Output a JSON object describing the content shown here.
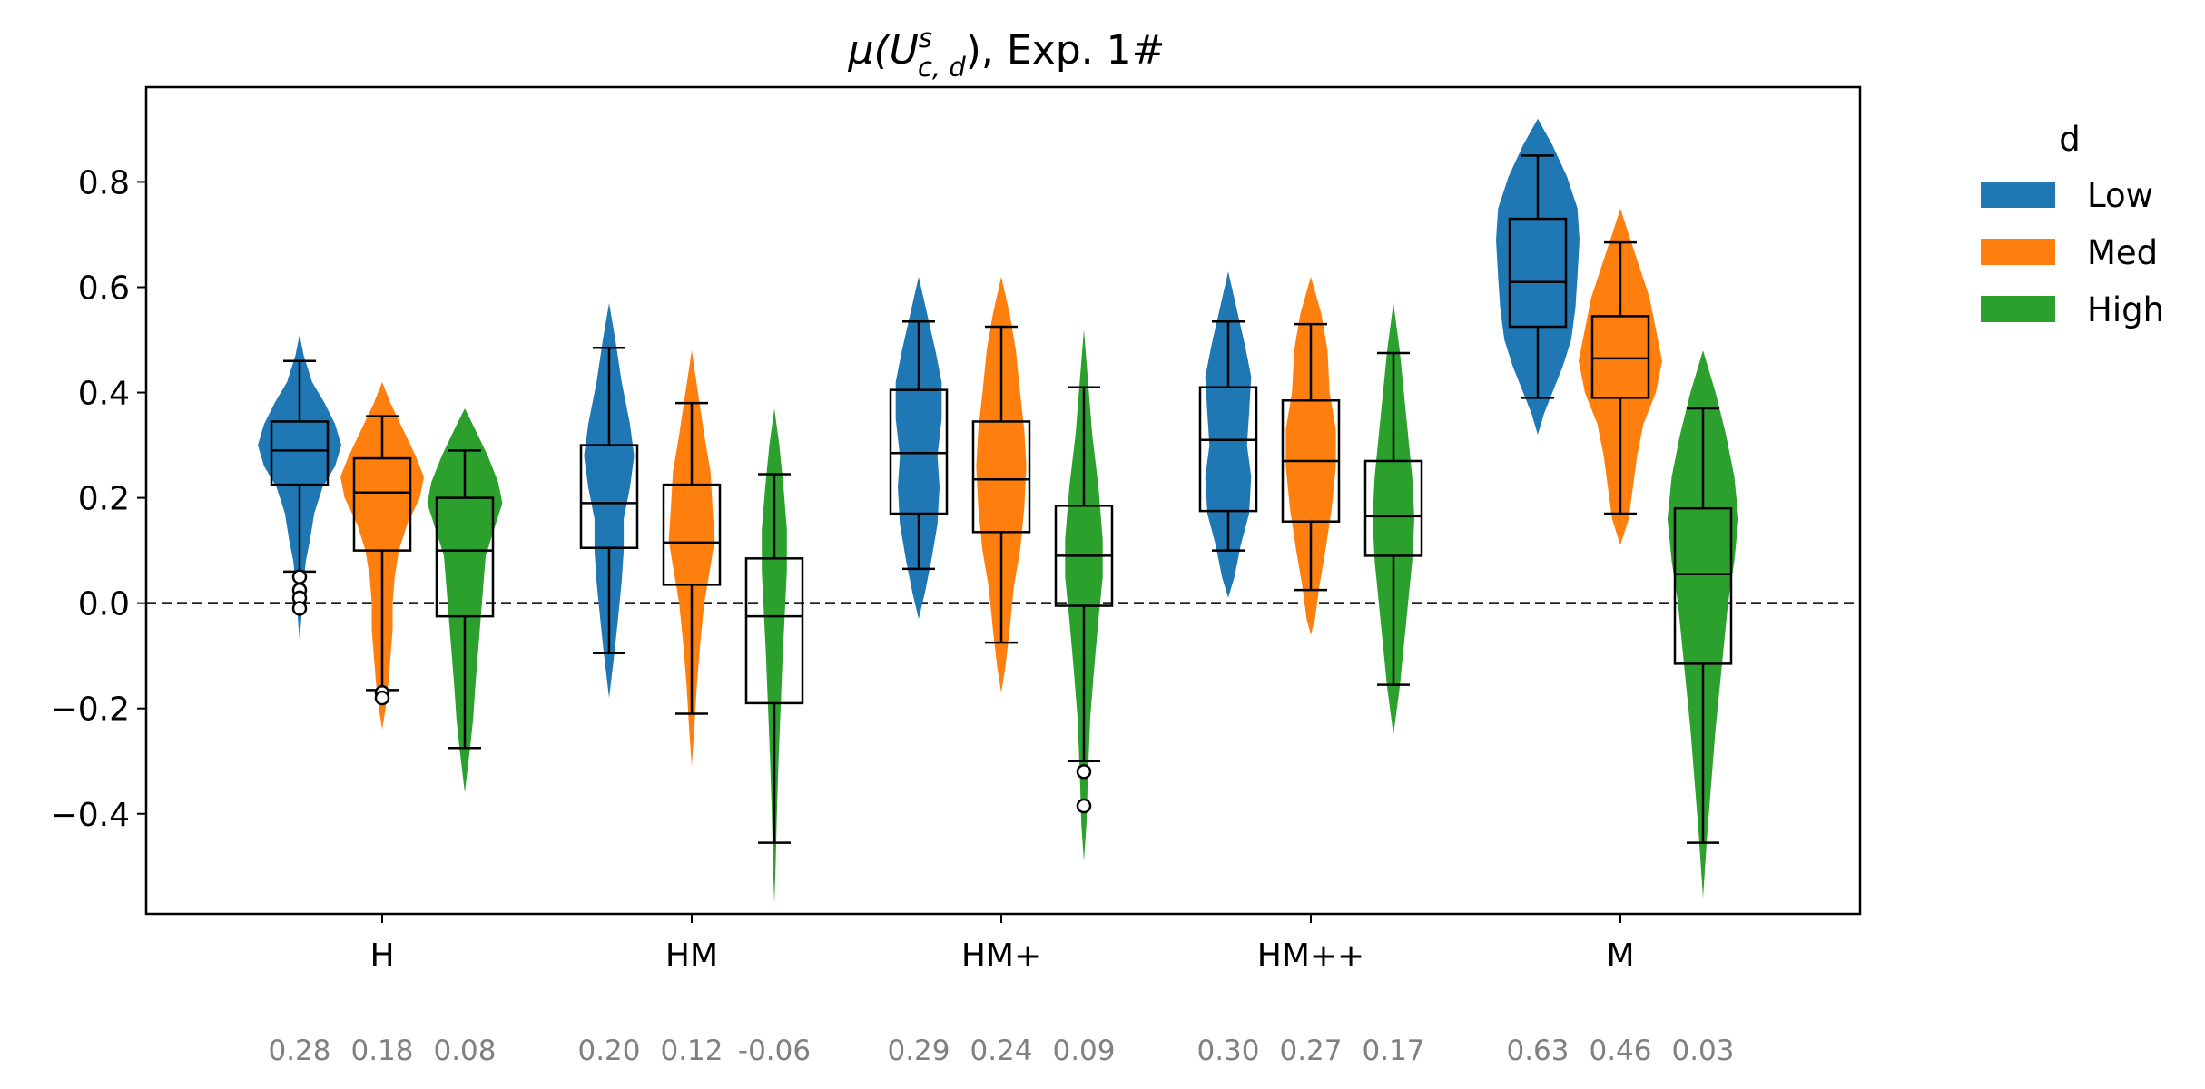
{
  "chart_data": {
    "type": "violin",
    "title": "μ(U",
    "title_sup": "s",
    "title_sub": "c, d",
    "title_suffix": "), Exp. 1#",
    "xlabel": "",
    "ylabel": "",
    "ylim": [
      -0.59,
      0.98
    ],
    "yticks": [
      0.8,
      0.6,
      0.4,
      0.2,
      0.0,
      -0.2,
      -0.4
    ],
    "ytick_labels": [
      "0.8",
      "0.6",
      "0.4",
      "0.2",
      "0.0",
      "−0.2",
      "−0.4"
    ],
    "reference_line": {
      "y": 0.0,
      "style": "dashed"
    },
    "categories": [
      "H",
      "HM",
      "HM+",
      "HM++",
      "M"
    ],
    "legend": {
      "title": "d",
      "placement": "outside-top-right",
      "items": [
        {
          "label": "Low",
          "color": "#1f77b4"
        },
        {
          "label": "Med",
          "color": "#ff7f0e"
        },
        {
          "label": "High",
          "color": "#2ca02c"
        }
      ]
    },
    "series": [
      {
        "name": "Low",
        "color": "#1f77b4",
        "means": [
          "0.28",
          "0.20",
          "0.29",
          "0.30",
          "0.63"
        ],
        "violins": [
          [
            [
              0.51,
              0.0
            ],
            [
              0.47,
              0.1
            ],
            [
              0.42,
              0.3
            ],
            [
              0.38,
              0.6
            ],
            [
              0.34,
              0.85
            ],
            [
              0.3,
              1.0
            ],
            [
              0.26,
              0.85
            ],
            [
              0.22,
              0.55
            ],
            [
              0.17,
              0.35
            ],
            [
              0.12,
              0.25
            ],
            [
              0.08,
              0.15
            ],
            [
              0.04,
              0.1
            ],
            [
              0.0,
              0.07
            ],
            [
              -0.04,
              0.03
            ],
            [
              -0.07,
              0.0
            ]
          ],
          [
            [
              0.57,
              0.0
            ],
            [
              0.5,
              0.15
            ],
            [
              0.42,
              0.3
            ],
            [
              0.34,
              0.5
            ],
            [
              0.28,
              0.6
            ],
            [
              0.22,
              0.5
            ],
            [
              0.16,
              0.35
            ],
            [
              0.1,
              0.35
            ],
            [
              0.04,
              0.3
            ],
            [
              -0.04,
              0.2
            ],
            [
              -0.1,
              0.12
            ],
            [
              -0.18,
              0.0
            ]
          ],
          [
            [
              0.62,
              0.0
            ],
            [
              0.55,
              0.2
            ],
            [
              0.48,
              0.4
            ],
            [
              0.42,
              0.55
            ],
            [
              0.35,
              0.55
            ],
            [
              0.28,
              0.45
            ],
            [
              0.22,
              0.5
            ],
            [
              0.15,
              0.45
            ],
            [
              0.08,
              0.3
            ],
            [
              0.02,
              0.15
            ],
            [
              -0.03,
              0.0
            ]
          ],
          [
            [
              0.63,
              0.0
            ],
            [
              0.56,
              0.2
            ],
            [
              0.49,
              0.4
            ],
            [
              0.43,
              0.55
            ],
            [
              0.36,
              0.5
            ],
            [
              0.3,
              0.45
            ],
            [
              0.24,
              0.55
            ],
            [
              0.17,
              0.5
            ],
            [
              0.11,
              0.3
            ],
            [
              0.05,
              0.15
            ],
            [
              0.01,
              0.0
            ]
          ],
          [
            [
              0.92,
              0.0
            ],
            [
              0.87,
              0.35
            ],
            [
              0.81,
              0.7
            ],
            [
              0.75,
              0.95
            ],
            [
              0.69,
              1.0
            ],
            [
              0.62,
              0.95
            ],
            [
              0.56,
              0.9
            ],
            [
              0.5,
              0.8
            ],
            [
              0.45,
              0.6
            ],
            [
              0.4,
              0.35
            ],
            [
              0.36,
              0.15
            ],
            [
              0.32,
              0.0
            ]
          ]
        ],
        "boxes": [
          {
            "whislo": 0.06,
            "q1": 0.225,
            "med": 0.29,
            "q3": 0.345,
            "whishi": 0.46,
            "fliers": [
              0.05,
              0.025,
              0.01,
              -0.01
            ]
          },
          {
            "whislo": -0.095,
            "q1": 0.105,
            "med": 0.19,
            "q3": 0.3,
            "whishi": 0.485,
            "fliers": []
          },
          {
            "whislo": 0.065,
            "q1": 0.17,
            "med": 0.285,
            "q3": 0.405,
            "whishi": 0.535,
            "fliers": []
          },
          {
            "whislo": 0.1,
            "q1": 0.175,
            "med": 0.31,
            "q3": 0.41,
            "whishi": 0.535,
            "fliers": []
          },
          {
            "whislo": 0.39,
            "q1": 0.525,
            "med": 0.61,
            "q3": 0.73,
            "whishi": 0.85,
            "fliers": []
          }
        ]
      },
      {
        "name": "Med",
        "color": "#ff7f0e",
        "means": [
          "0.18",
          "0.12",
          "0.24",
          "0.27",
          "0.46"
        ],
        "violins": [
          [
            [
              0.42,
              0.0
            ],
            [
              0.38,
              0.2
            ],
            [
              0.33,
              0.5
            ],
            [
              0.28,
              0.8
            ],
            [
              0.24,
              1.0
            ],
            [
              0.2,
              0.9
            ],
            [
              0.15,
              0.6
            ],
            [
              0.1,
              0.4
            ],
            [
              0.05,
              0.3
            ],
            [
              0.0,
              0.25
            ],
            [
              -0.05,
              0.25
            ],
            [
              -0.1,
              0.2
            ],
            [
              -0.15,
              0.15
            ],
            [
              -0.2,
              0.08
            ],
            [
              -0.24,
              0.0
            ]
          ],
          [
            [
              0.48,
              0.0
            ],
            [
              0.4,
              0.15
            ],
            [
              0.32,
              0.3
            ],
            [
              0.25,
              0.45
            ],
            [
              0.18,
              0.5
            ],
            [
              0.12,
              0.55
            ],
            [
              0.07,
              0.45
            ],
            [
              0.0,
              0.3
            ],
            [
              -0.08,
              0.2
            ],
            [
              -0.16,
              0.12
            ],
            [
              -0.24,
              0.06
            ],
            [
              -0.31,
              0.0
            ]
          ],
          [
            [
              0.62,
              0.0
            ],
            [
              0.55,
              0.2
            ],
            [
              0.48,
              0.35
            ],
            [
              0.4,
              0.45
            ],
            [
              0.33,
              0.55
            ],
            [
              0.26,
              0.6
            ],
            [
              0.18,
              0.55
            ],
            [
              0.1,
              0.45
            ],
            [
              0.03,
              0.3
            ],
            [
              -0.05,
              0.2
            ],
            [
              -0.12,
              0.1
            ],
            [
              -0.17,
              0.0
            ]
          ],
          [
            [
              0.62,
              0.0
            ],
            [
              0.55,
              0.25
            ],
            [
              0.48,
              0.4
            ],
            [
              0.4,
              0.45
            ],
            [
              0.33,
              0.6
            ],
            [
              0.26,
              0.6
            ],
            [
              0.18,
              0.5
            ],
            [
              0.1,
              0.35
            ],
            [
              0.03,
              0.2
            ],
            [
              -0.03,
              0.1
            ],
            [
              -0.06,
              0.0
            ]
          ],
          [
            [
              0.75,
              0.0
            ],
            [
              0.7,
              0.2
            ],
            [
              0.64,
              0.45
            ],
            [
              0.58,
              0.7
            ],
            [
              0.52,
              0.85
            ],
            [
              0.46,
              1.0
            ],
            [
              0.4,
              0.85
            ],
            [
              0.34,
              0.55
            ],
            [
              0.28,
              0.4
            ],
            [
              0.22,
              0.3
            ],
            [
              0.16,
              0.2
            ],
            [
              0.11,
              0.0
            ]
          ]
        ],
        "boxes": [
          {
            "whislo": -0.165,
            "q1": 0.1,
            "med": 0.21,
            "q3": 0.275,
            "whishi": 0.355,
            "fliers": [
              -0.17,
              -0.18
            ]
          },
          {
            "whislo": -0.21,
            "q1": 0.035,
            "med": 0.115,
            "q3": 0.225,
            "whishi": 0.38,
            "fliers": []
          },
          {
            "whislo": -0.075,
            "q1": 0.135,
            "med": 0.235,
            "q3": 0.345,
            "whishi": 0.525,
            "fliers": []
          },
          {
            "whislo": 0.025,
            "q1": 0.155,
            "med": 0.27,
            "q3": 0.385,
            "whishi": 0.53,
            "fliers": []
          },
          {
            "whislo": 0.17,
            "q1": 0.39,
            "med": 0.465,
            "q3": 0.545,
            "whishi": 0.685,
            "fliers": []
          }
        ]
      },
      {
        "name": "High",
        "color": "#2ca02c",
        "means": [
          "0.08",
          "-0.06",
          "0.09",
          "0.17",
          "0.03"
        ],
        "violins": [
          [
            [
              0.37,
              0.0
            ],
            [
              0.33,
              0.25
            ],
            [
              0.28,
              0.55
            ],
            [
              0.23,
              0.8
            ],
            [
              0.19,
              0.9
            ],
            [
              0.14,
              0.7
            ],
            [
              0.09,
              0.5
            ],
            [
              0.04,
              0.45
            ],
            [
              -0.01,
              0.4
            ],
            [
              -0.06,
              0.35
            ],
            [
              -0.11,
              0.3
            ],
            [
              -0.16,
              0.25
            ],
            [
              -0.22,
              0.2
            ],
            [
              -0.28,
              0.12
            ],
            [
              -0.36,
              0.0
            ]
          ],
          [
            [
              0.37,
              0.0
            ],
            [
              0.3,
              0.12
            ],
            [
              0.22,
              0.22
            ],
            [
              0.14,
              0.3
            ],
            [
              0.06,
              0.3
            ],
            [
              -0.02,
              0.25
            ],
            [
              -0.1,
              0.2
            ],
            [
              -0.2,
              0.15
            ],
            [
              -0.3,
              0.1
            ],
            [
              -0.4,
              0.06
            ],
            [
              -0.5,
              0.03
            ],
            [
              -0.57,
              0.0
            ]
          ],
          [
            [
              0.52,
              0.0
            ],
            [
              0.42,
              0.1
            ],
            [
              0.32,
              0.2
            ],
            [
              0.22,
              0.35
            ],
            [
              0.12,
              0.45
            ],
            [
              0.05,
              0.45
            ],
            [
              -0.03,
              0.35
            ],
            [
              -0.12,
              0.25
            ],
            [
              -0.22,
              0.15
            ],
            [
              -0.32,
              0.1
            ],
            [
              -0.42,
              0.06
            ],
            [
              -0.49,
              0.0
            ]
          ],
          [
            [
              0.57,
              0.0
            ],
            [
              0.48,
              0.15
            ],
            [
              0.4,
              0.25
            ],
            [
              0.32,
              0.35
            ],
            [
              0.24,
              0.45
            ],
            [
              0.16,
              0.5
            ],
            [
              0.08,
              0.45
            ],
            [
              0.0,
              0.35
            ],
            [
              -0.08,
              0.25
            ],
            [
              -0.16,
              0.15
            ],
            [
              -0.25,
              0.0
            ]
          ],
          [
            [
              0.48,
              0.0
            ],
            [
              0.4,
              0.3
            ],
            [
              0.32,
              0.55
            ],
            [
              0.24,
              0.75
            ],
            [
              0.16,
              0.85
            ],
            [
              0.08,
              0.75
            ],
            [
              0.0,
              0.6
            ],
            [
              -0.08,
              0.5
            ],
            [
              -0.16,
              0.4
            ],
            [
              -0.24,
              0.3
            ],
            [
              -0.34,
              0.2
            ],
            [
              -0.44,
              0.1
            ],
            [
              -0.56,
              0.0
            ]
          ]
        ],
        "boxes": [
          {
            "whislo": -0.275,
            "q1": -0.025,
            "med": 0.1,
            "q3": 0.2,
            "whishi": 0.29,
            "fliers": []
          },
          {
            "whislo": -0.455,
            "q1": -0.19,
            "med": -0.025,
            "q3": 0.085,
            "whishi": 0.245,
            "fliers": []
          },
          {
            "whislo": -0.3,
            "q1": -0.005,
            "med": 0.09,
            "q3": 0.185,
            "whishi": 0.41,
            "fliers": [
              -0.32,
              -0.385
            ]
          },
          {
            "whislo": -0.155,
            "q1": 0.09,
            "med": 0.165,
            "q3": 0.27,
            "whishi": 0.475,
            "fliers": []
          },
          {
            "whislo": -0.455,
            "q1": -0.115,
            "med": 0.055,
            "q3": 0.18,
            "whishi": 0.37,
            "fliers": []
          }
        ]
      }
    ]
  }
}
